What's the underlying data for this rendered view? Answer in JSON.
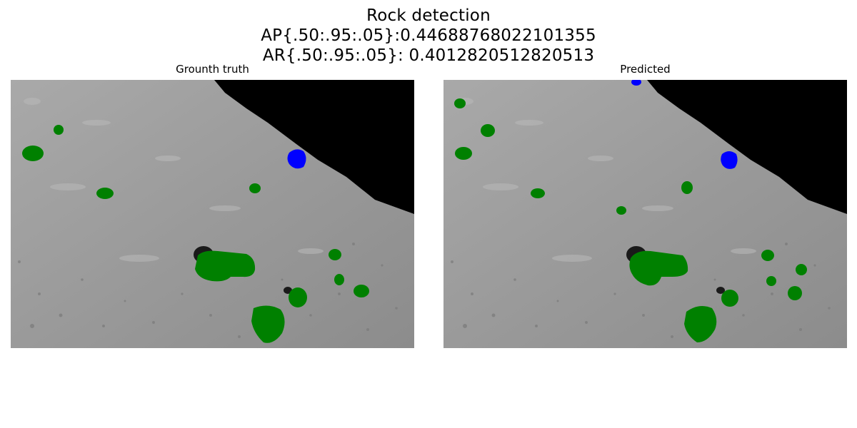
{
  "figure": {
    "title": "Rock detection",
    "ap_line": "AP{.50:.95:.05}:0.44688768022101355",
    "ar_line": "AR{.50:.95:.05}: 0.4012820512820513"
  },
  "panels": [
    {
      "title": "Grounth truth",
      "content": "grayscale lunar surface image with green rock masks and one blue rock mask"
    },
    {
      "title": "Predicted",
      "content": "grayscale lunar surface image with green predicted rock masks and blue predicted masks"
    }
  ],
  "colors": {
    "rock_mask": "#008000",
    "blue_mask": "#0000ff",
    "sky": "#000000"
  }
}
